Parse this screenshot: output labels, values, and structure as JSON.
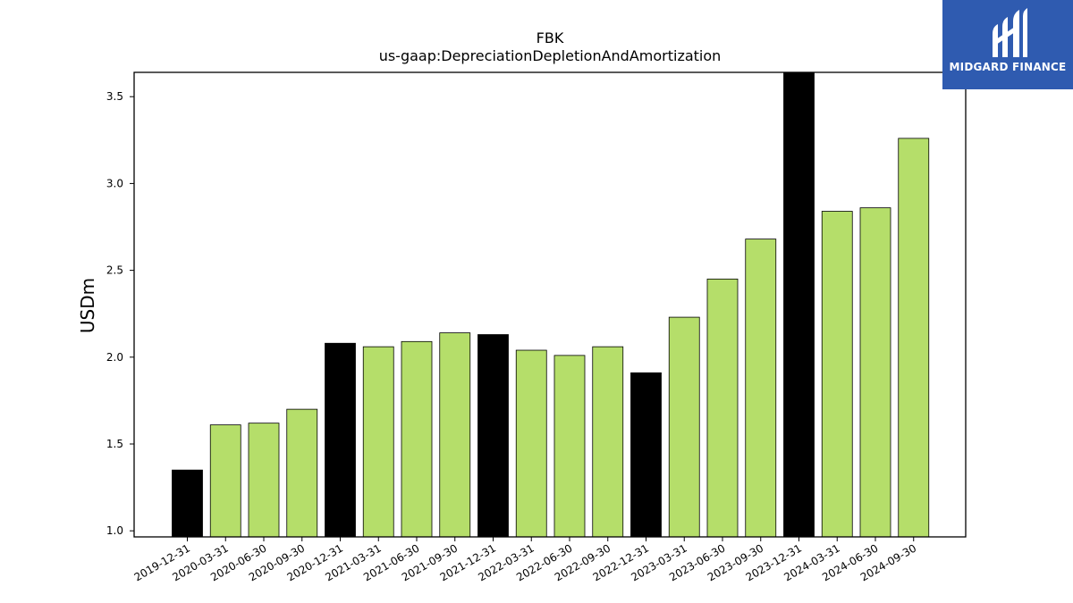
{
  "chart_data": {
    "type": "bar",
    "title": "FBK",
    "subtitle": "us-gaap:DepreciationDepletionAndAmortization",
    "xlabel": "",
    "ylabel": "USDm",
    "ylim": [
      0.965,
      3.64
    ],
    "yticks": [
      "1.0",
      "1.5",
      "2.0",
      "2.5",
      "3.0",
      "3.5"
    ],
    "categories": [
      "2019-12-31",
      "2020-03-31",
      "2020-06-30",
      "2020-09-30",
      "2020-12-31",
      "2021-03-31",
      "2021-06-30",
      "2021-09-30",
      "2021-12-31",
      "2022-03-31",
      "2022-06-30",
      "2022-09-30",
      "2022-12-31",
      "2023-03-31",
      "2023-06-30",
      "2023-09-30",
      "2023-12-31",
      "2024-03-31",
      "2024-06-30",
      "2024-09-30"
    ],
    "values": [
      1.35,
      1.61,
      1.62,
      1.7,
      2.08,
      2.06,
      2.09,
      2.14,
      2.13,
      2.04,
      2.01,
      2.06,
      1.91,
      2.23,
      2.45,
      2.68,
      3.64,
      2.84,
      2.86,
      3.26
    ],
    "bar_colors": [
      "#000000",
      "#b5de6a",
      "#b5de6a",
      "#b5de6a",
      "#000000",
      "#b5de6a",
      "#b5de6a",
      "#b5de6a",
      "#000000",
      "#b5de6a",
      "#b5de6a",
      "#b5de6a",
      "#000000",
      "#b5de6a",
      "#b5de6a",
      "#b5de6a",
      "#000000",
      "#b5de6a",
      "#b5de6a",
      "#b5de6a"
    ],
    "grid": false,
    "legend": "none"
  },
  "logo": {
    "text": "MIDGARD FINANCE",
    "background": "#2f5bb0"
  }
}
